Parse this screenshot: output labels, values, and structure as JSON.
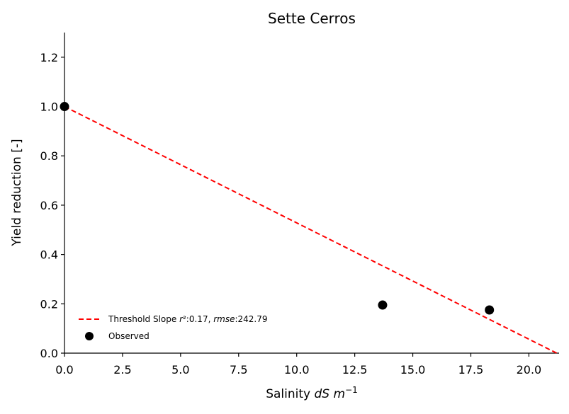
{
  "chart_data": {
    "type": "scatter",
    "title": "Sette Cerros",
    "xlabel": {
      "prefix": "Salinity ",
      "italic": "dS m",
      "sup": "−1"
    },
    "ylabel": "Yield reduction [-]",
    "xlim": [
      0,
      21.3
    ],
    "ylim": [
      0,
      1.3
    ],
    "xticks": [
      "0.0",
      "2.5",
      "5.0",
      "7.5",
      "10.0",
      "12.5",
      "15.0",
      "17.5",
      "20.0"
    ],
    "xtick_values": [
      0,
      2.5,
      5,
      7.5,
      10,
      12.5,
      15,
      17.5,
      20
    ],
    "yticks": [
      "0.0",
      "0.2",
      "0.4",
      "0.6",
      "0.8",
      "1.0",
      "1.2"
    ],
    "ytick_values": [
      0,
      0.2,
      0.4,
      0.6,
      0.8,
      1.0,
      1.2
    ],
    "legend_position": "lower-left",
    "series": [
      {
        "name": {
          "prefix": "Threshold Slope ",
          "r_label": "r",
          "r2_rest": "²:0.17, ",
          "rmse_label": "rmse",
          "rmse_rest": ":242.79"
        },
        "kind": "line",
        "style": "dashed",
        "color": "#ff0000",
        "x": [
          0,
          21.2
        ],
        "y": [
          1.0,
          0.0
        ]
      },
      {
        "name": "Observed",
        "kind": "scatter",
        "color": "#000000",
        "x": [
          0,
          13.7,
          18.3
        ],
        "y": [
          1.0,
          0.195,
          0.175
        ]
      }
    ]
  }
}
